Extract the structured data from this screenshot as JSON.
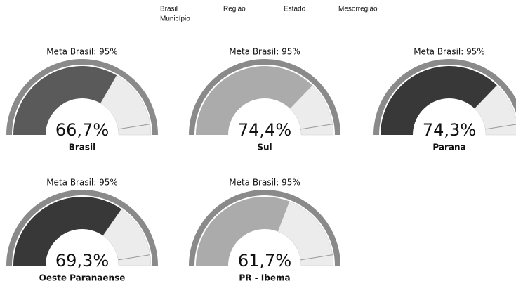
{
  "nav": [
    "Brasil",
    "Região",
    "Estado",
    "Mesorregião",
    "Município"
  ],
  "chart_data": [
    {
      "type": "gauge",
      "title": "Meta Brasil: 95%",
      "target": 95,
      "value": 66.7,
      "value_label": "66,7%",
      "label": "Brasil",
      "color": "#5a5a5a",
      "ylim": [
        0,
        100
      ]
    },
    {
      "type": "gauge",
      "title": "Meta Brasil: 95%",
      "target": 95,
      "value": 74.4,
      "value_label": "74,4%",
      "label": "Sul",
      "color": "#ababab",
      "ylim": [
        0,
        100
      ]
    },
    {
      "type": "gauge",
      "title": "Meta Brasil: 95%",
      "target": 95,
      "value": 74.3,
      "value_label": "74,3%",
      "label": "Parana",
      "color": "#383838",
      "ylim": [
        0,
        100
      ]
    },
    {
      "type": "gauge",
      "title": "Meta Brasil: 95%",
      "target": 95,
      "value": 69.3,
      "value_label": "69,3%",
      "label": "Oeste Paranaense",
      "color": "#383838",
      "ylim": [
        0,
        100
      ]
    },
    {
      "type": "gauge",
      "title": "Meta Brasil: 95%",
      "target": 95,
      "value": 61.7,
      "value_label": "61,7%",
      "label": "PR - Ibema",
      "color": "#ababab",
      "ylim": [
        0,
        100
      ]
    }
  ]
}
